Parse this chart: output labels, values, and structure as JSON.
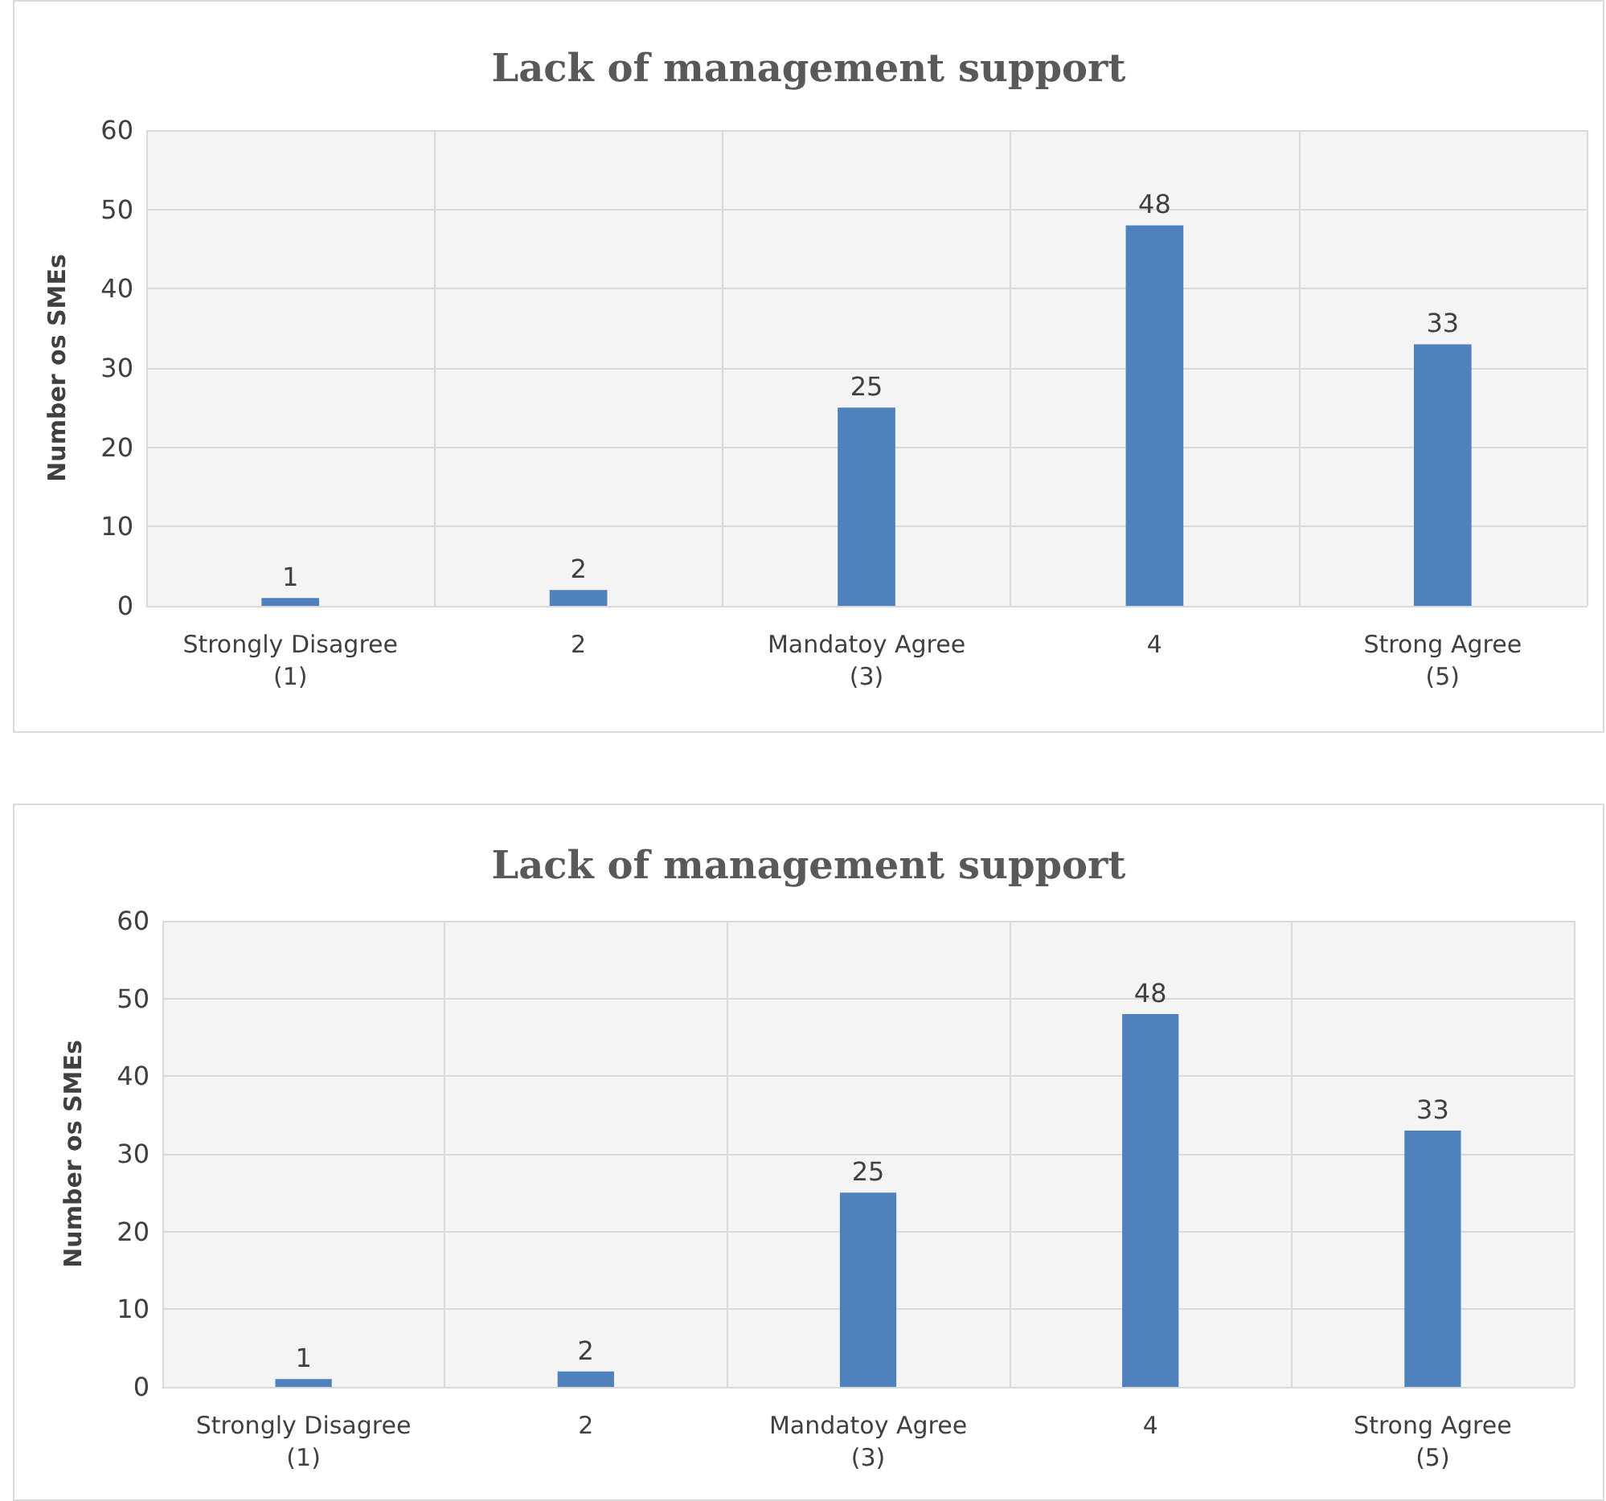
{
  "chart_data": [
    {
      "type": "bar",
      "title": "Lack of management support",
      "ylabel": "Number os SMEs",
      "categories": [
        "Strongly Disagree\n(1)",
        "2",
        "Mandatoy Agree\n(3)",
        "4",
        "Strong Agree\n(5)"
      ],
      "values": [
        1,
        2,
        25,
        48,
        33
      ],
      "color": "#4f81bd",
      "ylim": [
        0,
        60
      ],
      "yticks": [
        0,
        10,
        20,
        30,
        40,
        50,
        60
      ],
      "grid": true,
      "data_labels": true
    },
    {
      "type": "bar",
      "title": "Lack of management support",
      "ylabel": "Number os SMEs",
      "categories": [
        "Strongly Disagree\n(1)",
        "2",
        "Mandatoy Agree\n(3)",
        "4",
        "Strong Agree\n(5)"
      ],
      "values": [
        1,
        2,
        25,
        48,
        33
      ],
      "color": "#4f81bd",
      "ylim": [
        0,
        60
      ],
      "yticks": [
        0,
        10,
        20,
        30,
        40,
        50,
        60
      ],
      "grid": true,
      "data_labels": true
    }
  ]
}
